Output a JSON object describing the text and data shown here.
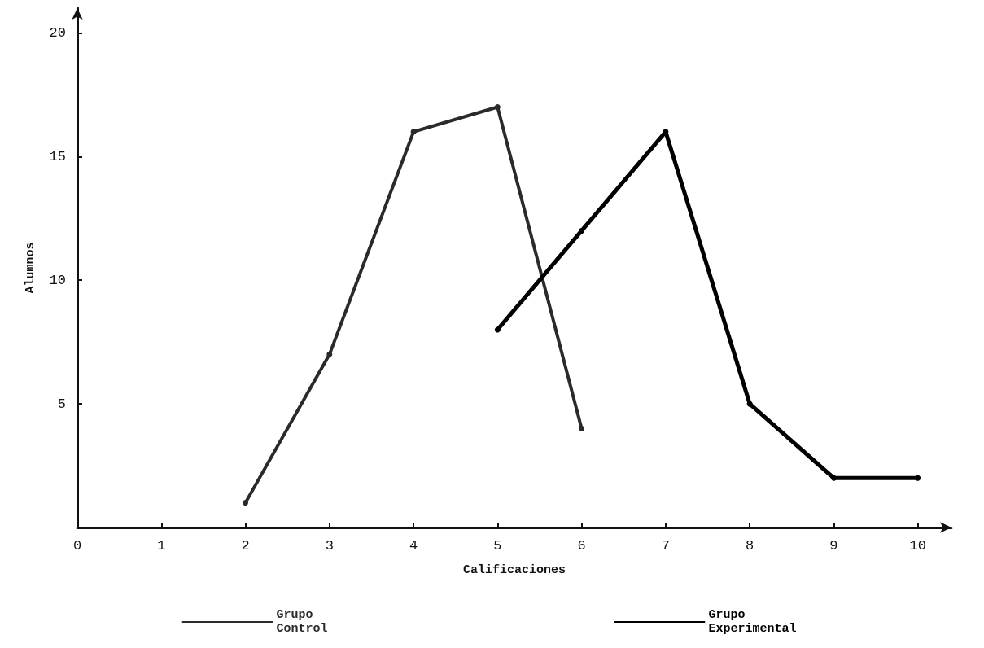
{
  "chart_data": {
    "type": "line",
    "xlabel": "Calificaciones",
    "ylabel": "Alumnos",
    "xlim": [
      0,
      10.4
    ],
    "ylim": [
      0,
      21
    ],
    "xticks": [
      0,
      1,
      2,
      3,
      4,
      5,
      6,
      7,
      8,
      9,
      10
    ],
    "yticks": [
      {
        "value": 0,
        "label": null
      },
      5,
      10,
      15,
      20
    ],
    "grid": false,
    "legend": "bottom",
    "marker": "circle",
    "line_style": "solid",
    "series": [
      {
        "name": "Grupo Control",
        "color": "#2a2a2a",
        "x": [
          2,
          3,
          4,
          5,
          6
        ],
        "values": [
          1,
          7,
          16,
          17,
          4
        ]
      },
      {
        "name": "Grupo Experimental",
        "color": "#000000",
        "x": [
          5,
          6,
          7,
          8,
          9,
          10
        ],
        "values": [
          8,
          12,
          16,
          5,
          2,
          2
        ]
      }
    ]
  }
}
